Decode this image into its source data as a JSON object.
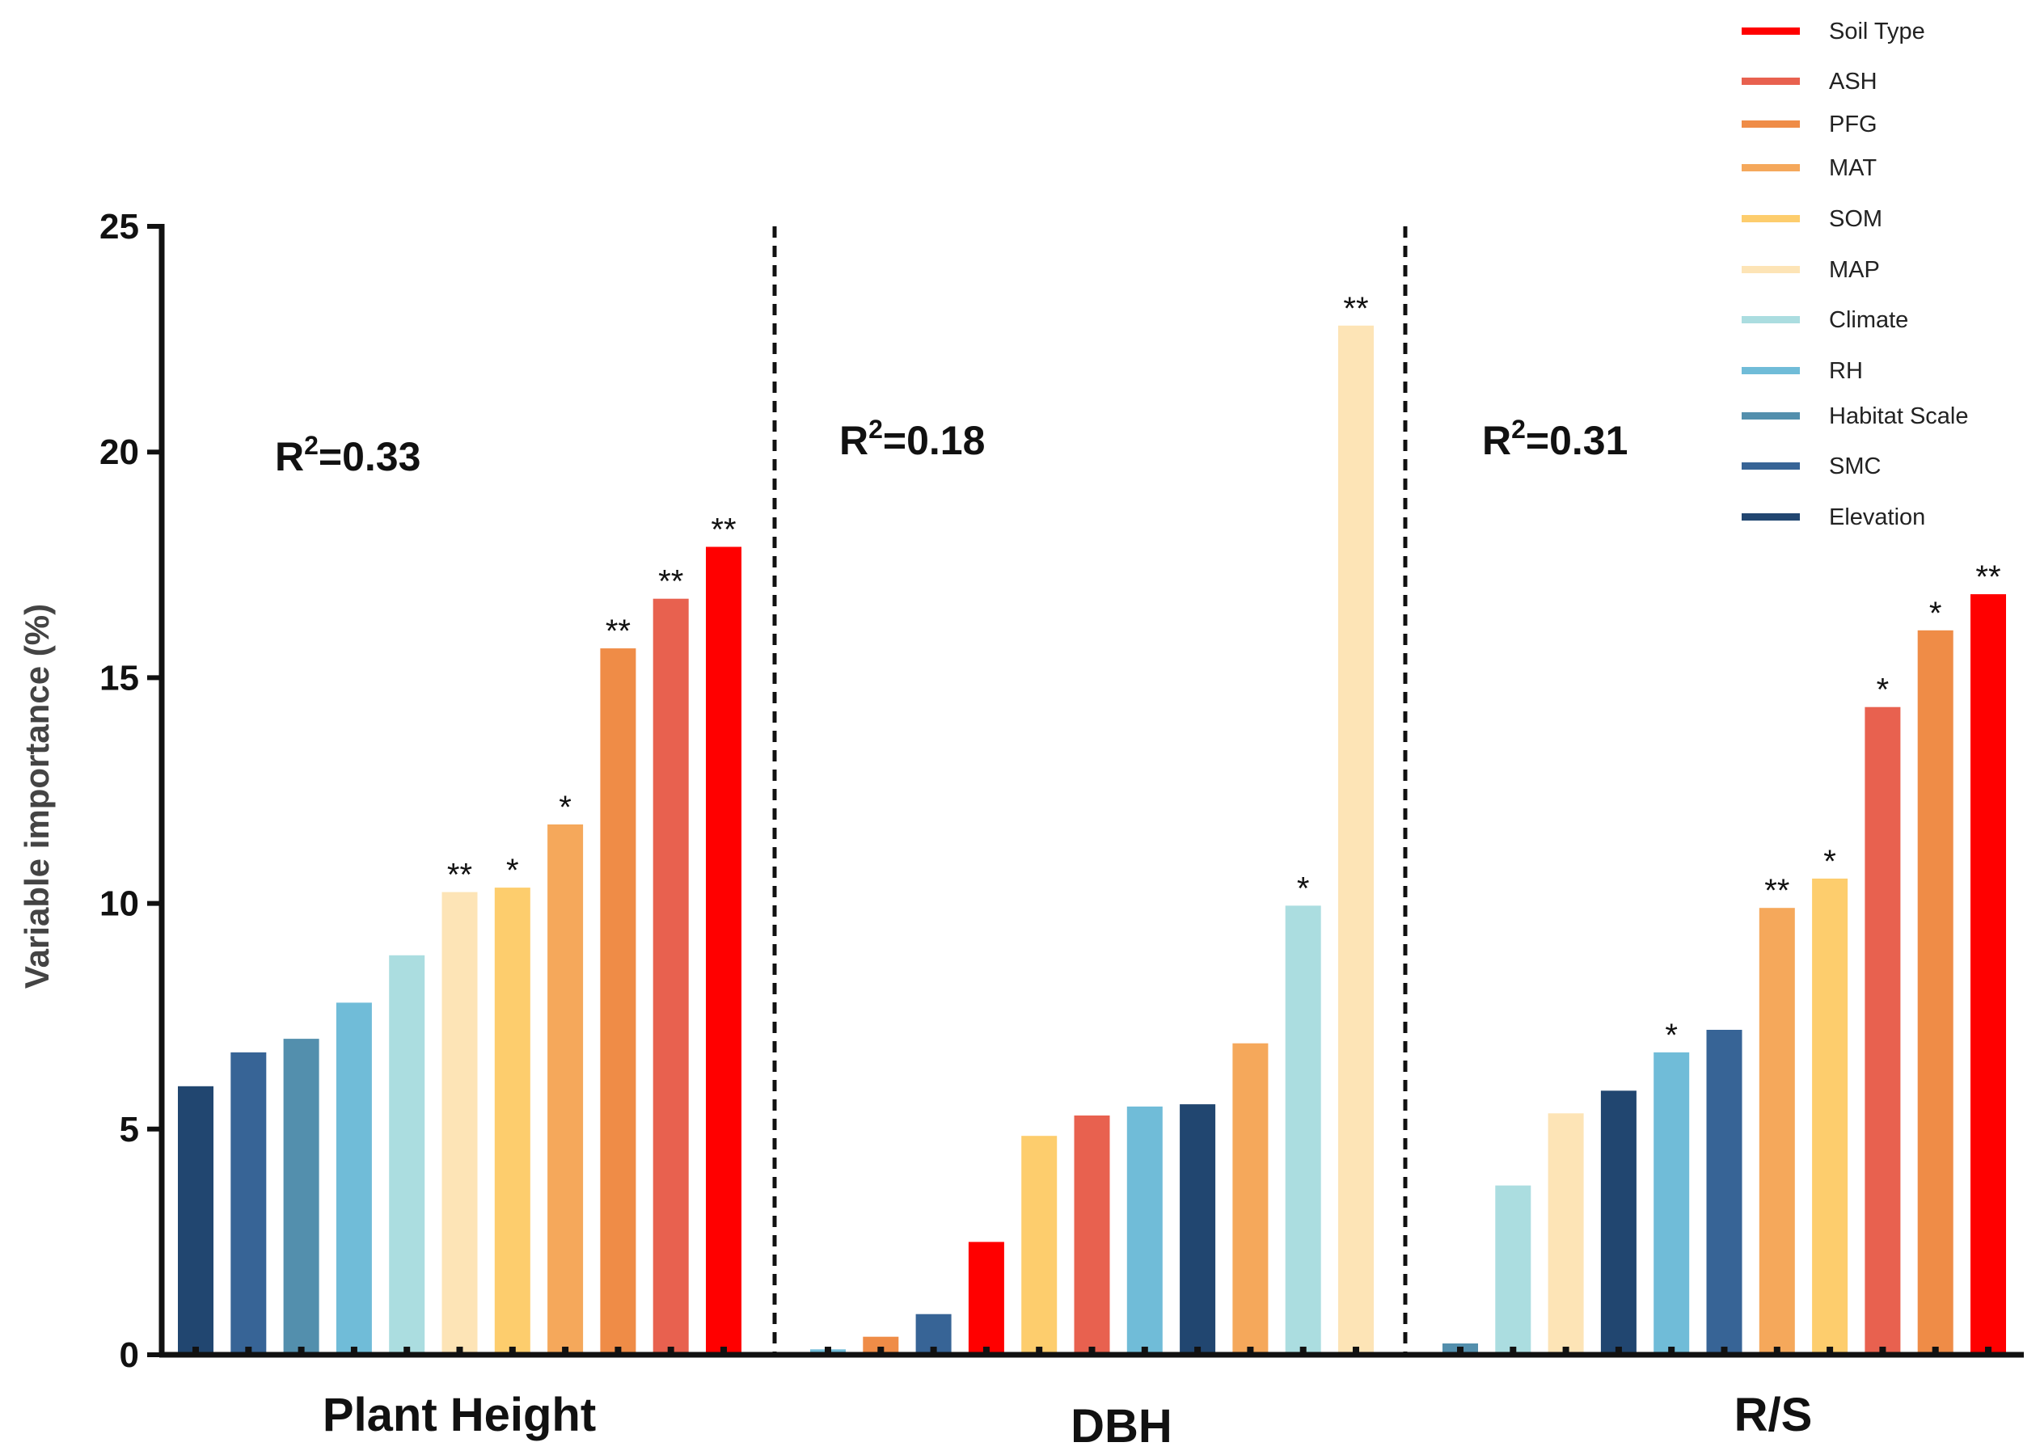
{
  "chart_data": {
    "type": "bar",
    "ylabel": "Variable importance (%)",
    "ylim": [
      0,
      25
    ],
    "yticks": [
      "0",
      "5",
      "10",
      "15",
      "20",
      "25"
    ],
    "legend_position": "top-right",
    "variables": {
      "Soil Type": "#ff0000",
      "ASH": "#e8614f",
      "PFG": "#ef8c47",
      "MAT": "#f5a85b",
      "SOM": "#fdcd6d",
      "MAP": "#fde4b6",
      "Climate": "#abdde0",
      "RH": "#70bcd8",
      "Habitat Scale": "#538fad",
      "SMC": "#376496",
      "Elevation": "#214670"
    },
    "legend": [
      "Soil Type",
      "ASH",
      "PFG",
      "MAT",
      "SOM",
      "MAP",
      "Climate",
      "RH",
      "Habitat Scale",
      "SMC",
      "Elevation"
    ],
    "groups": [
      {
        "label": "Plant Height",
        "r2_prefix": "R",
        "r2_sup": "2",
        "r2_value": "=0.33",
        "bars": [
          {
            "variable": "Elevation",
            "value": 5.95,
            "sig": ""
          },
          {
            "variable": "SMC",
            "value": 6.7,
            "sig": ""
          },
          {
            "variable": "Habitat Scale",
            "value": 7.0,
            "sig": ""
          },
          {
            "variable": "RH",
            "value": 7.8,
            "sig": ""
          },
          {
            "variable": "Climate",
            "value": 8.85,
            "sig": ""
          },
          {
            "variable": "MAP",
            "value": 10.25,
            "sig": "**"
          },
          {
            "variable": "SOM",
            "value": 10.35,
            "sig": "*"
          },
          {
            "variable": "MAT",
            "value": 11.75,
            "sig": "*"
          },
          {
            "variable": "PFG",
            "value": 15.65,
            "sig": "**"
          },
          {
            "variable": "ASH",
            "value": 16.75,
            "sig": "**"
          },
          {
            "variable": "Soil Type",
            "value": 17.9,
            "sig": "**"
          }
        ]
      },
      {
        "label": "DBH",
        "r2_prefix": "R",
        "r2_sup": "2",
        "r2_value": "=0.18",
        "bars": [
          {
            "variable": "RH",
            "value": 0.12,
            "sig": ""
          },
          {
            "variable": "PFG",
            "value": 0.4,
            "sig": ""
          },
          {
            "variable": "SMC",
            "value": 0.9,
            "sig": ""
          },
          {
            "variable": "Soil Type",
            "value": 2.5,
            "sig": ""
          },
          {
            "variable": "SOM",
            "value": 4.85,
            "sig": ""
          },
          {
            "variable": "ASH",
            "value": 5.3,
            "sig": ""
          },
          {
            "variable": "RH",
            "value": 5.5,
            "sig": ""
          },
          {
            "variable": "Elevation",
            "value": 5.55,
            "sig": ""
          },
          {
            "variable": "MAT",
            "value": 6.9,
            "sig": ""
          },
          {
            "variable": "Climate",
            "value": 9.95,
            "sig": "*"
          },
          {
            "variable": "MAP",
            "value": 22.8,
            "sig": "**"
          }
        ]
      },
      {
        "label": "R/S",
        "r2_prefix": "R",
        "r2_sup": "2",
        "r2_value": "=0.31",
        "bars": [
          {
            "variable": "Habitat Scale",
            "value": 0.25,
            "sig": ""
          },
          {
            "variable": "Climate",
            "value": 3.75,
            "sig": ""
          },
          {
            "variable": "MAP",
            "value": 5.35,
            "sig": ""
          },
          {
            "variable": "Elevation",
            "value": 5.85,
            "sig": ""
          },
          {
            "variable": "RH",
            "value": 6.7,
            "sig": "*"
          },
          {
            "variable": "SMC",
            "value": 7.2,
            "sig": ""
          },
          {
            "variable": "MAT",
            "value": 9.9,
            "sig": "**"
          },
          {
            "variable": "SOM",
            "value": 10.55,
            "sig": "*"
          },
          {
            "variable": "ASH",
            "value": 14.35,
            "sig": "*"
          },
          {
            "variable": "PFG",
            "value": 16.05,
            "sig": "*"
          },
          {
            "variable": "Soil Type",
            "value": 16.85,
            "sig": "**"
          }
        ]
      }
    ]
  }
}
